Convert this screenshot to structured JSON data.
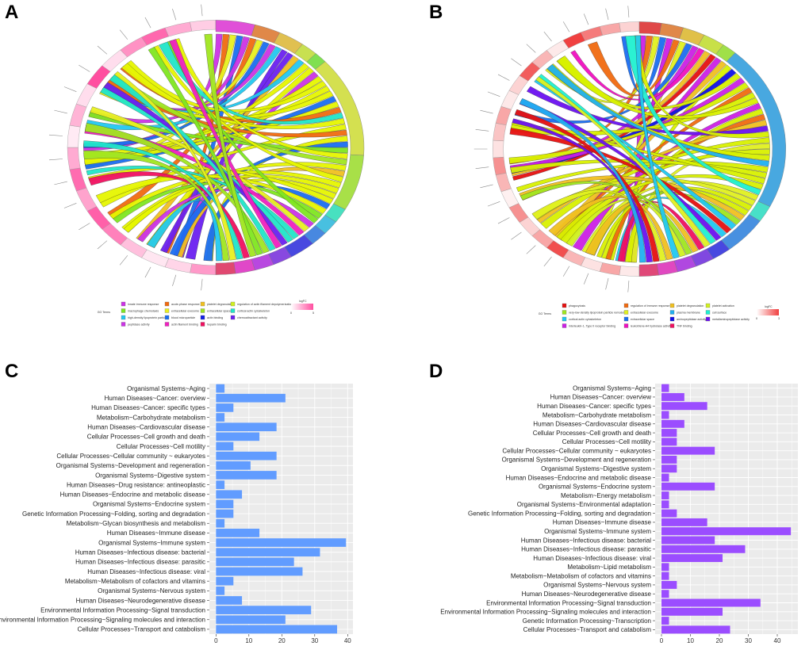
{
  "panels": {
    "a": "A",
    "b": "B",
    "c": "C",
    "d": "D"
  },
  "chart_data": [
    {
      "type": "chord",
      "panel": "A",
      "legend_title": "GO Terms",
      "scale_title": "logFC",
      "scale_ticks": [
        "0",
        "5"
      ],
      "scale_colors": [
        "#ffffff",
        "#ff4fa0"
      ],
      "terms": [
        {
          "name": "innate immune response",
          "color": "#cc33e6"
        },
        {
          "name": "macrophage chemotaxis",
          "color": "#7fe620"
        },
        {
          "name": "high-density lipoprotein particle",
          "color": "#22c8f0"
        },
        {
          "name": "peptidase activity",
          "color": "#cc33e6"
        },
        {
          "name": "acute-phase response",
          "color": "#f06a10"
        },
        {
          "name": "extracellular exosome",
          "color": "#e8f020"
        },
        {
          "name": "blood microparticle",
          "color": "#1a6ef0"
        },
        {
          "name": "actin filament binding",
          "color": "#f020c0"
        },
        {
          "name": "platelet degranulation",
          "color": "#f0c020"
        },
        {
          "name": "extracellular space",
          "color": "#a0e620"
        },
        {
          "name": "actin binding",
          "color": "#1020e6"
        },
        {
          "name": "heparin binding",
          "color": "#f01060"
        },
        {
          "name": "regulation of actin filament depolymerization",
          "color": "#d0f020"
        },
        {
          "name": "cortical actin cytoskeleton",
          "color": "#20e6c8"
        },
        {
          "name": "chemoattractant activity",
          "color": "#6a20f0"
        }
      ],
      "ring_terms": [
        {
          "color": "#e050d8",
          "weight": 3
        },
        {
          "color": "#e08848",
          "weight": 2
        },
        {
          "color": "#e0c050",
          "weight": 2
        },
        {
          "color": "#c8e050",
          "weight": 1.3
        },
        {
          "color": "#80e050",
          "weight": 1
        },
        {
          "color": "#d4e050",
          "weight": 9
        },
        {
          "color": "#a8e048",
          "weight": 5
        },
        {
          "color": "#48e0c0",
          "weight": 1.3
        },
        {
          "color": "#48c0e0",
          "weight": 1.3
        },
        {
          "color": "#4888e0",
          "weight": 1.3
        },
        {
          "color": "#4848e0",
          "weight": 2
        },
        {
          "color": "#8848e0",
          "weight": 1.5
        },
        {
          "color": "#b848e0",
          "weight": 1.5
        },
        {
          "color": "#e048c8",
          "weight": 1.5
        },
        {
          "color": "#e04870",
          "weight": 1.5
        }
      ],
      "gene_logfc": [
        2.4,
        1.0,
        0.6,
        1.5,
        3.0,
        3.8,
        2.2,
        3.5,
        2.0,
        0.5,
        1.8,
        0.8,
        4.2,
        0.8,
        2.6,
        3.6,
        2.0,
        1.2
      ]
    },
    {
      "type": "chord",
      "panel": "B",
      "legend_title": "GO Terms",
      "scale_title": "logFC",
      "scale_ticks": [
        "0",
        "3"
      ],
      "scale_colors": [
        "#ffffff",
        "#f04040"
      ],
      "terms": [
        {
          "name": "phagocytosis",
          "color": "#e61010"
        },
        {
          "name": "very-low-density lipoprotein particle remodeling",
          "color": "#a0e620"
        },
        {
          "name": "cortical actin cytoskeleton",
          "color": "#20c8f0"
        },
        {
          "name": "interleukin-1, Type II receptor binding",
          "color": "#cc20e6"
        },
        {
          "name": "regulation of immune response",
          "color": "#f06a10"
        },
        {
          "name": "extracellular exosome",
          "color": "#e0f020"
        },
        {
          "name": "extracellular space",
          "color": "#1a6ef0"
        },
        {
          "name": "leukotriene-A4 hydrolase activity",
          "color": "#f010c0"
        },
        {
          "name": "platelet degranulation",
          "color": "#f0c020"
        },
        {
          "name": "plasma membrane",
          "color": "#20b0f0"
        },
        {
          "name": "aminopeptidase activity",
          "color": "#1010e6"
        },
        {
          "name": "TNF binding",
          "color": "#f01060"
        },
        {
          "name": "platelet activation",
          "color": "#d0f020"
        },
        {
          "name": "cell surface",
          "color": "#20f0d0"
        },
        {
          "name": "metallaminopeptidase activity",
          "color": "#6a10f0"
        }
      ],
      "ring_terms": [
        {
          "color": "#e04848",
          "weight": 1.5
        },
        {
          "color": "#e08848",
          "weight": 1.5
        },
        {
          "color": "#e0c048",
          "weight": 1.5
        },
        {
          "color": "#c8e048",
          "weight": 1.5
        },
        {
          "color": "#a0e048",
          "weight": 1
        },
        {
          "color": "#48a8e0",
          "weight": 13
        },
        {
          "color": "#48e0c8",
          "weight": 1.3
        },
        {
          "color": "#4890e0",
          "weight": 3
        },
        {
          "color": "#4848e0",
          "weight": 1.3
        },
        {
          "color": "#8048e0",
          "weight": 1.3
        },
        {
          "color": "#b048e0",
          "weight": 1.3
        },
        {
          "color": "#e048c0",
          "weight": 1.3
        },
        {
          "color": "#e04878",
          "weight": 1.3
        }
      ],
      "gene_logfc": [
        0.3,
        1.2,
        0.4,
        1.0,
        2.4,
        1.2,
        0.6,
        1.5,
        0.2,
        1.0,
        1.5,
        0.4,
        0.8,
        1.2,
        0.3,
        0.6,
        2.2,
        1.0,
        0.3,
        2.6,
        1.8,
        1.2,
        0.6
      ]
    },
    {
      "type": "bar",
      "orientation": "horizontal",
      "panel": "C",
      "color": "#619cff",
      "xlim": [
        0,
        41
      ],
      "xticks": [
        0,
        10,
        20,
        30,
        40
      ],
      "grid": true,
      "categories": [
        "Organismal Systems~Aging",
        "Human Diseases~Cancer: overview",
        "Human Diseases~Cancer: specific types",
        "Metabolism~Carbohydrate metabolism",
        "Human Diseases~Cardiovascular disease",
        "Cellular Processes~Cell growth and death",
        "Cellular Processes~Cell motility",
        "Cellular Processes~Cellular community ~ eukaryotes",
        "Organismal Systems~Development and regeneration",
        "Organismal Systems~Digestive system",
        "Human Diseases~Drug resistance: antineoplastic",
        "Human Diseases~Endocrine and metabolic disease",
        "Organismal Systems~Endocrine system",
        "Genetic Information Processing~Folding, sorting and degradation",
        "Metabolism~Glycan biosynthesis and metabolism",
        "Human Diseases~Immune disease",
        "Organismal Systems~Immune system",
        "Human Diseases~Infectious disease: bacterial",
        "Human Diseases~Infectious disease: parasitic",
        "Human Diseases~Infectious disease: viral",
        "Metabolism~Metabolism of cofactors and vitamins",
        "Organismal Systems~Nervous system",
        "Human Diseases~Neurodegenerative disease",
        "Environmental Information Processing~Signal transduction",
        "Environmental Information Processing~Signaling molecules and interaction",
        "Cellular Processes~Transport and catabolism"
      ],
      "values": [
        2.6,
        21.1,
        5.3,
        2.6,
        18.4,
        13.2,
        5.3,
        18.4,
        10.5,
        18.4,
        2.6,
        7.9,
        5.3,
        5.3,
        2.6,
        13.2,
        39.5,
        31.6,
        23.7,
        26.3,
        5.3,
        2.6,
        7.9,
        28.9,
        21.1,
        36.8
      ]
    },
    {
      "type": "bar",
      "orientation": "horizontal",
      "panel": "D",
      "color": "#9b4dff",
      "xlim": [
        0,
        47
      ],
      "xticks": [
        0,
        10,
        20,
        30,
        40
      ],
      "grid": true,
      "categories": [
        "Organismal Systems~Aging",
        "Human Diseases~Cancer: overview",
        "Human Diseases~Cancer: specific types",
        "Metabolism~Carbohydrate metabolism",
        "Human Diseases~Cardiovascular disease",
        "Cellular Processes~Cell growth and death",
        "Cellular Processes~Cell motility",
        "Cellular Processes~Cellular community ~ eukaryotes",
        "Organismal Systems~Development and regeneration",
        "Organismal Systems~Digestive system",
        "Human Diseases~Endocrine and metabolic disease",
        "Organismal Systems~Endocrine system",
        "Metabolism~Energy metabolism",
        "Organismal Systems~Environmental adaptation",
        "Genetic Information Processing~Folding, sorting and degradation",
        "Human Diseases~Immune disease",
        "Organismal Systems~Immune system",
        "Human Diseases~Infectious disease: bacterial",
        "Human Diseases~Infectious disease: parasitic",
        "Human Diseases~Infectious disease: viral",
        "Metabolism~Lipid metabolism",
        "Metabolism~Metabolism of cofactors and vitamins",
        "Organismal Systems~Nervous system",
        "Human Diseases~Neurodegenerative disease",
        "Environmental Information Processing~Signal transduction",
        "Environmental Information Processing~Signaling molecules and interaction",
        "Genetic Information Processing~Transcription",
        "Cellular Processes~Transport and catabolism"
      ],
      "values": [
        2.6,
        7.9,
        15.8,
        2.6,
        7.9,
        5.3,
        5.3,
        18.4,
        5.3,
        5.3,
        2.6,
        18.4,
        2.6,
        2.6,
        5.3,
        15.8,
        44.7,
        18.4,
        28.9,
        21.1,
        2.6,
        2.6,
        5.3,
        2.6,
        34.2,
        21.1,
        2.6,
        23.7
      ]
    }
  ]
}
